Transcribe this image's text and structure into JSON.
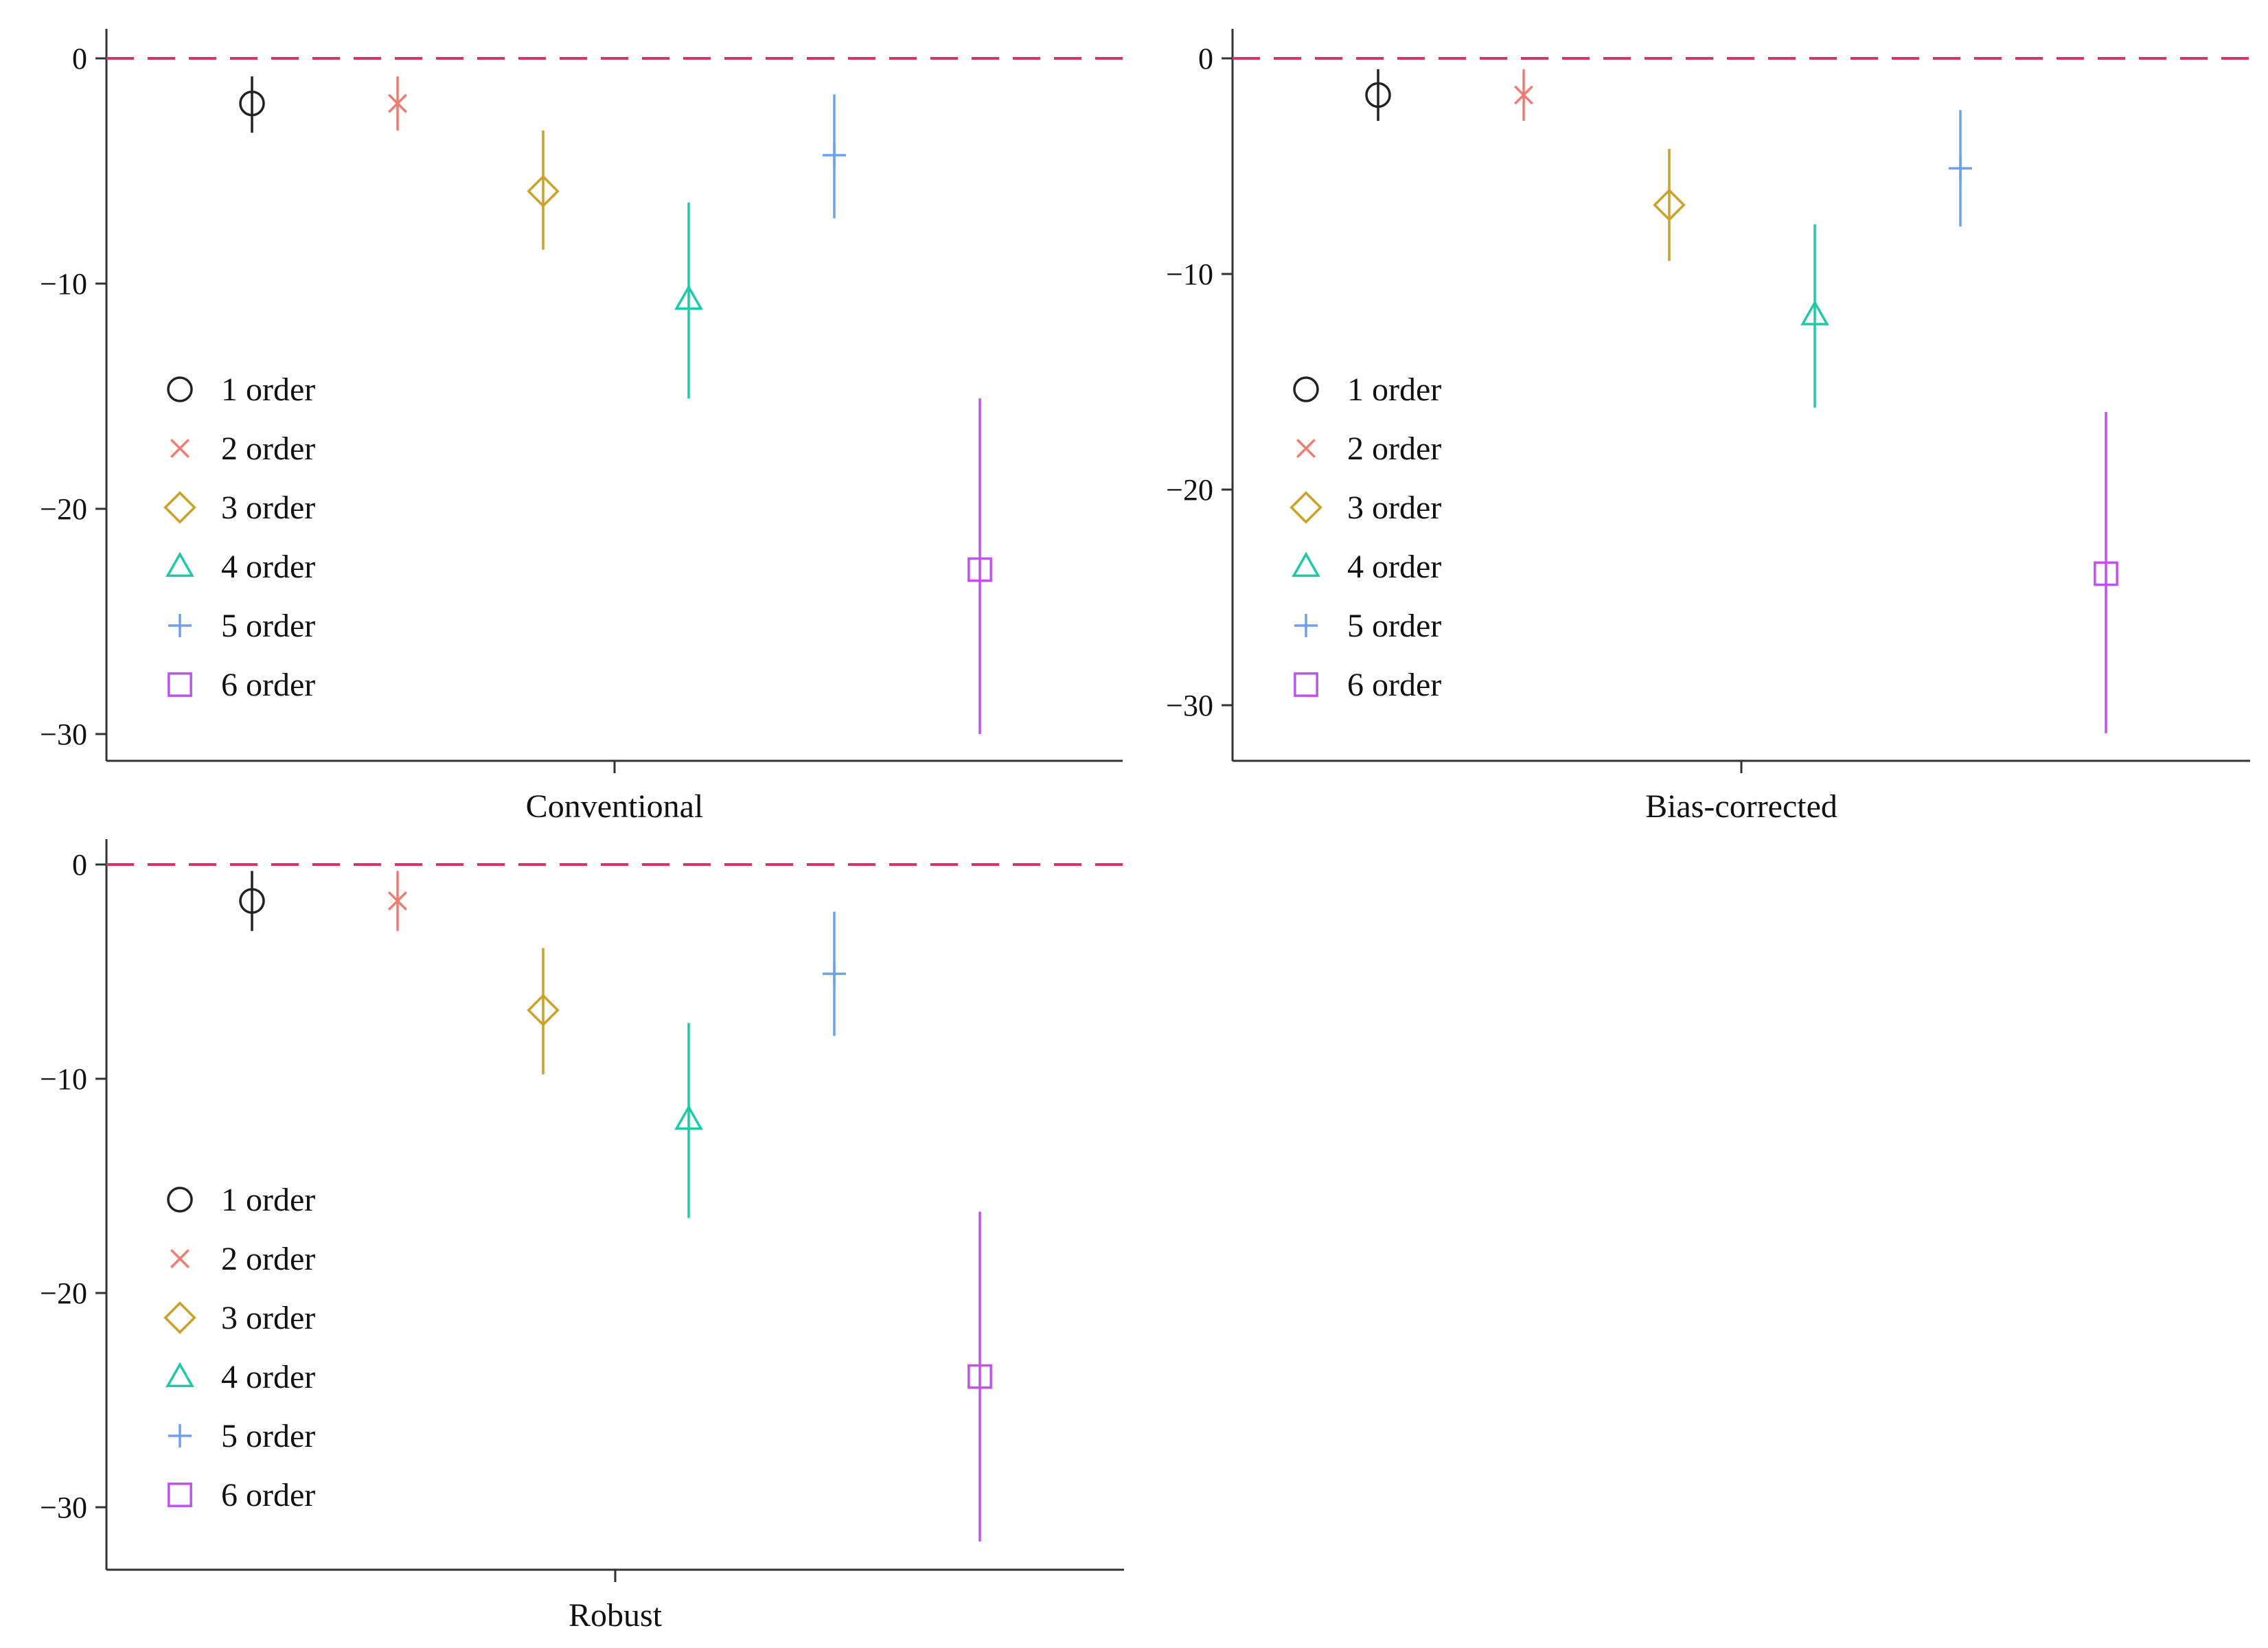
{
  "chart_data": [
    {
      "type": "scatter",
      "subtype": "point-range",
      "title": "",
      "xlabel": "Conventional",
      "ylabel": "",
      "ylim": [
        -32.5,
        1.3
      ],
      "yticks": [
        0,
        -10,
        -20,
        -30
      ],
      "yticklabels": [
        "0",
        "−10",
        "−20",
        "−30"
      ],
      "reference_line": {
        "y": 0,
        "style": "dashed",
        "color": "#d6336c"
      },
      "legend_position": "middle-left",
      "series": [
        {
          "name": "1 order",
          "estimate": -2.0,
          "lower": -3.3,
          "upper": -0.8
        },
        {
          "name": "2 order",
          "estimate": -2.0,
          "lower": -3.2,
          "upper": -0.8
        },
        {
          "name": "3 order",
          "estimate": -5.9,
          "lower": -8.5,
          "upper": -3.2
        },
        {
          "name": "4 order",
          "estimate": -10.7,
          "lower": -15.1,
          "upper": -6.4
        },
        {
          "name": "5 order",
          "estimate": -4.3,
          "lower": -7.1,
          "upper": -1.6
        },
        {
          "name": "6 order",
          "estimate": -22.7,
          "lower": -30.0,
          "upper": -15.1
        }
      ]
    },
    {
      "type": "scatter",
      "subtype": "point-range",
      "title": "",
      "xlabel": "Bias-corrected",
      "ylabel": "",
      "ylim": [
        -32.5,
        1.3
      ],
      "yticks": [
        0,
        -10,
        -20,
        -30
      ],
      "yticklabels": [
        "0",
        "−10",
        "−20",
        "−30"
      ],
      "reference_line": {
        "y": 0,
        "style": "dashed",
        "color": "#d6336c"
      },
      "legend_position": "middle-left",
      "series": [
        {
          "name": "1 order",
          "estimate": -1.7,
          "lower": -2.9,
          "upper": -0.5
        },
        {
          "name": "2 order",
          "estimate": -1.7,
          "lower": -2.9,
          "upper": -0.5
        },
        {
          "name": "3 order",
          "estimate": -6.8,
          "lower": -9.4,
          "upper": -4.2
        },
        {
          "name": "4 order",
          "estimate": -11.9,
          "lower": -16.2,
          "upper": -7.7
        },
        {
          "name": "5 order",
          "estimate": -5.1,
          "lower": -7.8,
          "upper": -2.4
        },
        {
          "name": "6 order",
          "estimate": -23.9,
          "lower": -31.3,
          "upper": -16.4
        }
      ]
    },
    {
      "type": "scatter",
      "subtype": "point-range",
      "title": "",
      "xlabel": "Robust",
      "ylabel": "",
      "ylim": [
        -32.5,
        1.3
      ],
      "yticks": [
        0,
        -10,
        -20,
        -30
      ],
      "yticklabels": [
        "0",
        "−10",
        "−20",
        "−30"
      ],
      "reference_line": {
        "y": 0,
        "style": "dashed",
        "color": "#d6336c"
      },
      "legend_position": "middle-left",
      "series": [
        {
          "name": "1 order",
          "estimate": -1.7,
          "lower": -3.1,
          "upper": -0.3
        },
        {
          "name": "2 order",
          "estimate": -1.7,
          "lower": -3.1,
          "upper": -0.3
        },
        {
          "name": "3 order",
          "estimate": -6.8,
          "lower": -9.8,
          "upper": -3.9
        },
        {
          "name": "4 order",
          "estimate": -11.9,
          "lower": -16.5,
          "upper": -7.4
        },
        {
          "name": "5 order",
          "estimate": -5.1,
          "lower": -8.0,
          "upper": -2.2
        },
        {
          "name": "6 order",
          "estimate": -23.9,
          "lower": -31.6,
          "upper": -16.2
        }
      ]
    }
  ],
  "series_styles": [
    {
      "name": "1 order",
      "marker": "circle",
      "color": "#222222"
    },
    {
      "name": "2 order",
      "marker": "x",
      "color": "#f07b72"
    },
    {
      "name": "3 order",
      "marker": "diamond",
      "color": "#c9a227"
    },
    {
      "name": "4 order",
      "marker": "triangle",
      "color": "#1ec8a8"
    },
    {
      "name": "5 order",
      "marker": "plus",
      "color": "#6fa0ee"
    },
    {
      "name": "6 order",
      "marker": "square",
      "color": "#c052f0"
    }
  ]
}
